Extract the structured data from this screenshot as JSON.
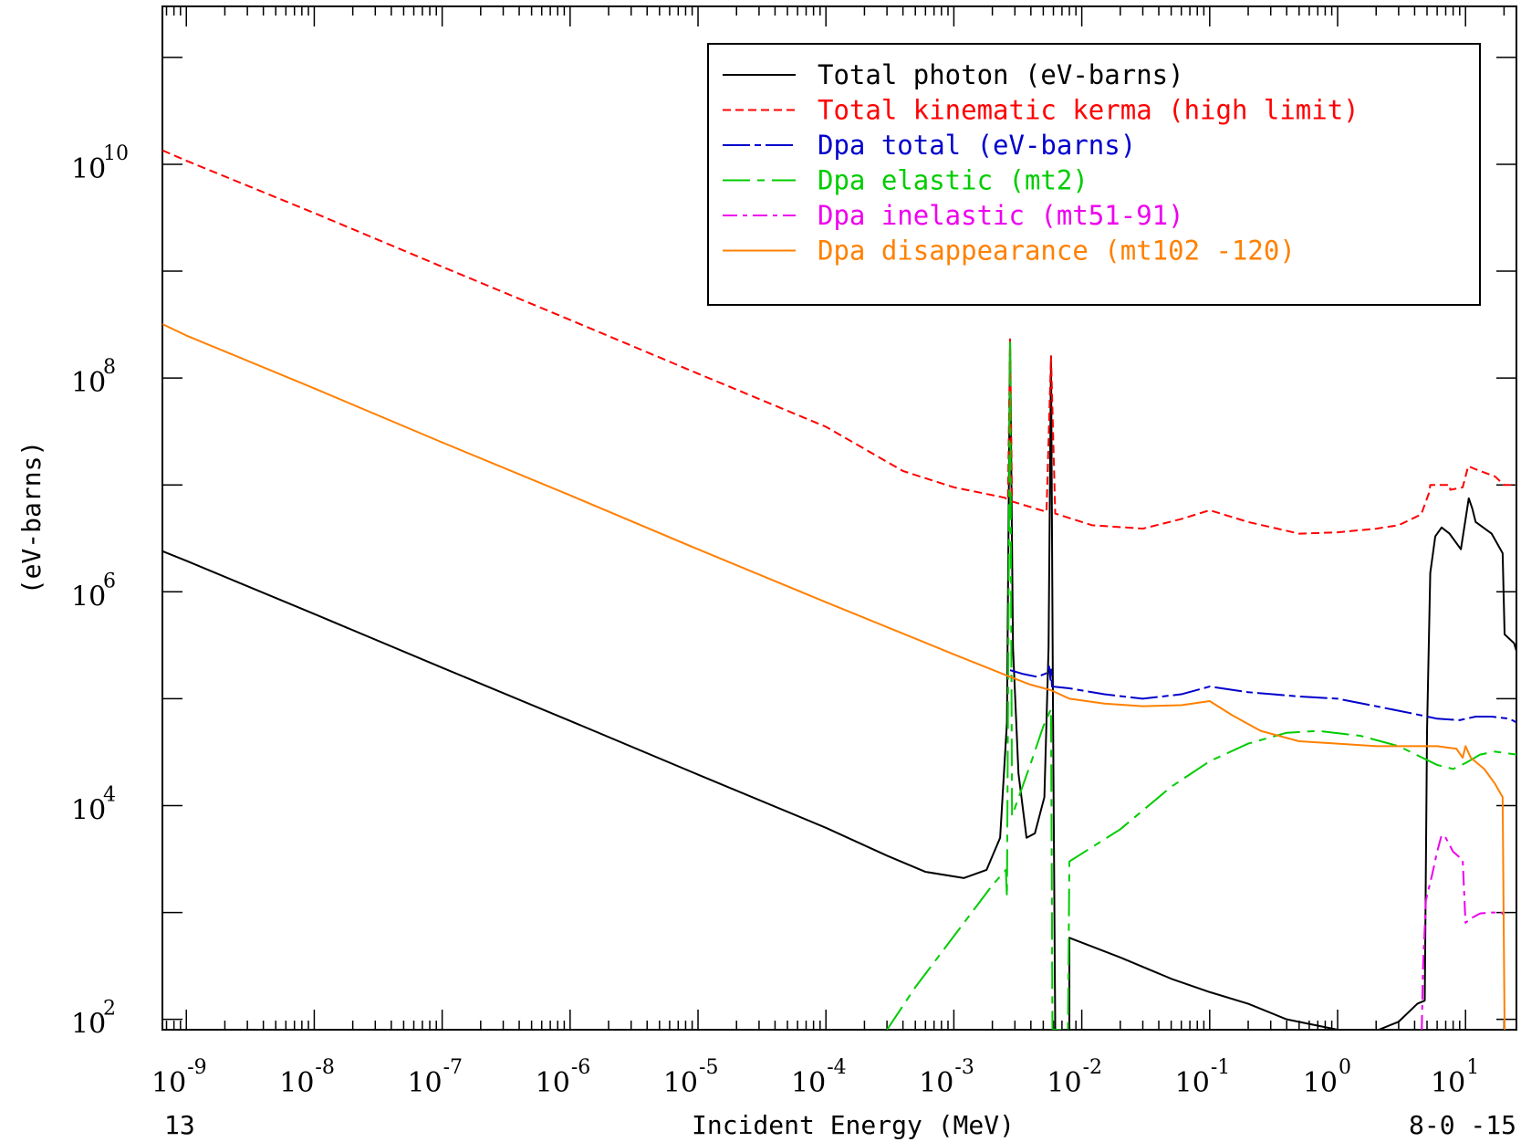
{
  "chart_data": {
    "type": "line",
    "xlabel": "Incident Energy (MeV)",
    "ylabel": "(eV-barns)",
    "corner_left": "13",
    "corner_right": "8-0 -15",
    "xscale": "log",
    "yscale": "log",
    "xlim": [
      6.5e-10,
      25
    ],
    "ylim": [
      80,
      300000000000.0
    ],
    "grid": false,
    "legend_position": "top-right",
    "x_tick_labels": [
      {
        "value": 1e-09,
        "base": "10",
        "exp": "-9"
      },
      {
        "value": 1e-08,
        "base": "10",
        "exp": "-8"
      },
      {
        "value": 1e-07,
        "base": "10",
        "exp": "-7"
      },
      {
        "value": 1e-06,
        "base": "10",
        "exp": "-6"
      },
      {
        "value": 1e-05,
        "base": "10",
        "exp": "-5"
      },
      {
        "value": 0.0001,
        "base": "10",
        "exp": "-4"
      },
      {
        "value": 0.001,
        "base": "10",
        "exp": "-3"
      },
      {
        "value": 0.01,
        "base": "10",
        "exp": "-2"
      },
      {
        "value": 0.1,
        "base": "10",
        "exp": "-1"
      },
      {
        "value": 1,
        "base": "10",
        "exp": "0"
      },
      {
        "value": 10,
        "base": "10",
        "exp": "1"
      }
    ],
    "y_tick_labels": [
      {
        "value": 100,
        "base": "10",
        "exp": "2"
      },
      {
        "value": 10000,
        "base": "10",
        "exp": "4"
      },
      {
        "value": 1000000,
        "base": "10",
        "exp": "6"
      },
      {
        "value": 100000000,
        "base": "10",
        "exp": "8"
      },
      {
        "value": 10000000000,
        "base": "10",
        "exp": "10"
      }
    ],
    "series": [
      {
        "name": "Total photon (eV-barns)",
        "color": "#000000",
        "dash": "",
        "points": [
          [
            6.5e-10,
            2400000.0
          ],
          [
            1e-09,
            1950000.0
          ],
          [
            1e-08,
            620000.0
          ],
          [
            1e-07,
            195000.0
          ],
          [
            1e-06,
            62000.0
          ],
          [
            1e-05,
            19500.0
          ],
          [
            0.0001,
            6200.0
          ],
          [
            0.0003,
            3400.0
          ],
          [
            0.0006,
            2400.0
          ],
          [
            0.0012,
            2100.0
          ],
          [
            0.0018,
            2500.0
          ],
          [
            0.0023,
            5000.0
          ],
          [
            0.0026,
            60000.0
          ],
          [
            0.00275,
            230000000.0
          ],
          [
            0.0029,
            300000.0
          ],
          [
            0.0032,
            20000.0
          ],
          [
            0.0037,
            5000.0
          ],
          [
            0.0043,
            5500.0
          ],
          [
            0.0051,
            12000.0
          ],
          [
            0.0055,
            300000.0
          ],
          [
            0.00575,
            160000000.0
          ],
          [
            0.00595,
            100000.0
          ],
          [
            0.0062,
            80
          ],
          [
            0.008,
            80
          ],
          [
            0.008,
            580
          ],
          [
            0.02,
            380
          ],
          [
            0.05,
            240
          ],
          [
            0.1,
            180
          ],
          [
            0.2,
            140
          ],
          [
            0.4,
            100
          ],
          [
            1,
            80
          ],
          [
            2.1,
            80
          ],
          [
            3,
            95
          ],
          [
            4.2,
            140
          ],
          [
            4.8,
            150
          ],
          [
            5.0,
            50000.0
          ],
          [
            5.3,
            1500000.0
          ],
          [
            5.8,
            3300000.0
          ],
          [
            6.5,
            4000000.0
          ],
          [
            7.5,
            3500000.0
          ],
          [
            9.2,
            2500000.0
          ],
          [
            10.6,
            7500000.0
          ],
          [
            11.3,
            6000000.0
          ],
          [
            12,
            4500000.0
          ],
          [
            16,
            3500000.0
          ],
          [
            19.5,
            2300000.0
          ],
          [
            20.2,
            400000.0
          ],
          [
            24,
            330000.0
          ],
          [
            25,
            280000.0
          ]
        ]
      },
      {
        "name": "Total kinematic kerma (high limit)",
        "color": "#ff0000",
        "dash": "9,5",
        "points": [
          [
            6.5e-10,
            13500000000.0
          ],
          [
            1e-09,
            10800000000.0
          ],
          [
            1e-08,
            3500000000.0
          ],
          [
            1e-07,
            1100000000.0
          ],
          [
            1e-06,
            350000000.0
          ],
          [
            1e-05,
            110000000.0
          ],
          [
            0.0001,
            35000000.0
          ],
          [
            0.0004,
            13500000.0
          ],
          [
            0.001,
            9500000.0
          ],
          [
            0.0025,
            7600000.0
          ],
          [
            0.00265,
            7200000.0
          ],
          [
            0.00275,
            230000000.0
          ],
          [
            0.00285,
            7000000.0
          ],
          [
            0.0053,
            5600000.0
          ],
          [
            0.00575,
            160000000.0
          ],
          [
            0.0062,
            5400000.0
          ],
          [
            0.012,
            4200000.0
          ],
          [
            0.03,
            3900000.0
          ],
          [
            0.06,
            4800000.0
          ],
          [
            0.1,
            5800000.0
          ],
          [
            0.2,
            4500000.0
          ],
          [
            0.5,
            3500000.0
          ],
          [
            1,
            3600000.0
          ],
          [
            2,
            3900000.0
          ],
          [
            3,
            4200000.0
          ],
          [
            4.5,
            5300000.0
          ],
          [
            5.2,
            8500000.0
          ],
          [
            5.3,
            10000000.0
          ],
          [
            7.5,
            10000000.0
          ],
          [
            7.6,
            9000000.0
          ],
          [
            9.5,
            9500000.0
          ],
          [
            10.5,
            15000000.0
          ],
          [
            12,
            14000000.0
          ],
          [
            17,
            12000000.0
          ],
          [
            20,
            10000000.0
          ],
          [
            25,
            10000000.0
          ]
        ]
      },
      {
        "name": "Dpa total (eV-barns)",
        "color": "#0000cc",
        "dash": "30,5,7,5",
        "points": [
          [
            0.00275,
            185000.0
          ],
          [
            0.0035,
            170000.0
          ],
          [
            0.0045,
            160000.0
          ],
          [
            0.0054,
            175000.0
          ],
          [
            0.00555,
            200000.0
          ],
          [
            0.0057,
            150000.0
          ],
          [
            0.00575,
            200000.0
          ],
          [
            0.00585,
            130000.0
          ],
          [
            0.008,
            125000.0
          ],
          [
            0.015,
            110000.0
          ],
          [
            0.03,
            100000.0
          ],
          [
            0.06,
            110000.0
          ],
          [
            0.1,
            130000.0
          ],
          [
            0.2,
            115000.0
          ],
          [
            0.5,
            105000.0
          ],
          [
            1,
            100000.0
          ],
          [
            2,
            85000.0
          ],
          [
            4,
            72000.0
          ],
          [
            6,
            65000.0
          ],
          [
            9,
            63000.0
          ],
          [
            12,
            68000.0
          ],
          [
            16,
            68000.0
          ],
          [
            22,
            65000.0
          ],
          [
            25,
            60000.0
          ]
        ]
      },
      {
        "name": "Dpa elastic (mt2)",
        "color": "#00cc00",
        "dash": "30,8,8,8",
        "points": [
          [
            0.0003,
            80
          ],
          [
            0.0005,
            200
          ],
          [
            0.001,
            600
          ],
          [
            0.002,
            1800.0
          ],
          [
            0.00255,
            2500.0
          ],
          [
            0.0026,
            1400.0
          ],
          [
            0.00275,
            230000000.0
          ],
          [
            0.00285,
            8000.0
          ],
          [
            0.004,
            25000.0
          ],
          [
            0.005,
            55000.0
          ],
          [
            0.00575,
            80000.0
          ],
          [
            0.0059,
            80
          ],
          [
            0.0062,
            80
          ],
          [
            0.0078,
            80
          ],
          [
            0.008,
            3000.0
          ],
          [
            0.02,
            6000.0
          ],
          [
            0.05,
            15000.0
          ],
          [
            0.1,
            26000.0
          ],
          [
            0.2,
            38000.0
          ],
          [
            0.4,
            48000.0
          ],
          [
            0.7,
            50000.0
          ],
          [
            1.5,
            45000.0
          ],
          [
            3,
            36000.0
          ],
          [
            6,
            24000.0
          ],
          [
            8,
            22000.0
          ],
          [
            10,
            25000.0
          ],
          [
            13,
            30000.0
          ],
          [
            17,
            32000.0
          ],
          [
            25,
            30000.0
          ]
        ]
      },
      {
        "name": "Dpa inelastic (mt51-91)",
        "color": "#ee00ee",
        "dash": "16,6,5,6",
        "points": [
          [
            4.55,
            80
          ],
          [
            4.65,
            300
          ],
          [
            4.9,
            1300.0
          ],
          [
            5.5,
            2300.0
          ],
          [
            6,
            3700.0
          ],
          [
            6.5,
            5300.0
          ],
          [
            7,
            5000.0
          ],
          [
            8,
            3700.0
          ],
          [
            9.5,
            3100.0
          ],
          [
            10,
            800
          ],
          [
            11,
            880
          ],
          [
            13,
            980
          ],
          [
            16,
            1000.0
          ],
          [
            19,
            1000.0
          ],
          [
            20,
            950
          ]
        ]
      },
      {
        "name": "Dpa disappearance (mt102 -120)",
        "color": "#ff8000",
        "dash": "",
        "points": [
          [
            6.5e-10,
            320000000.0
          ],
          [
            1e-09,
            250000000.0
          ],
          [
            1e-08,
            80000000.0
          ],
          [
            1e-07,
            25000000.0
          ],
          [
            1e-06,
            8000000.0
          ],
          [
            1e-05,
            2500000.0
          ],
          [
            0.0001,
            800000.0
          ],
          [
            0.001,
            260000.0
          ],
          [
            0.00275,
            160000.0
          ],
          [
            0.004,
            135000.0
          ],
          [
            0.00575,
            120000.0
          ],
          [
            0.008,
            100000.0
          ],
          [
            0.015,
            90000.0
          ],
          [
            0.03,
            85000.0
          ],
          [
            0.06,
            87000.0
          ],
          [
            0.1,
            95000.0
          ],
          [
            0.15,
            70000.0
          ],
          [
            0.25,
            50000.0
          ],
          [
            0.5,
            40000.0
          ],
          [
            1,
            38000.0
          ],
          [
            2,
            36000.0
          ],
          [
            4,
            36000.0
          ],
          [
            6,
            36000.0
          ],
          [
            8.5,
            34000.0
          ],
          [
            9.5,
            28000.0
          ],
          [
            10,
            36000.0
          ],
          [
            11,
            28000.0
          ],
          [
            14,
            22000.0
          ],
          [
            17,
            16000.0
          ],
          [
            19.5,
            12000.0
          ],
          [
            20.2,
            80
          ]
        ]
      }
    ]
  }
}
